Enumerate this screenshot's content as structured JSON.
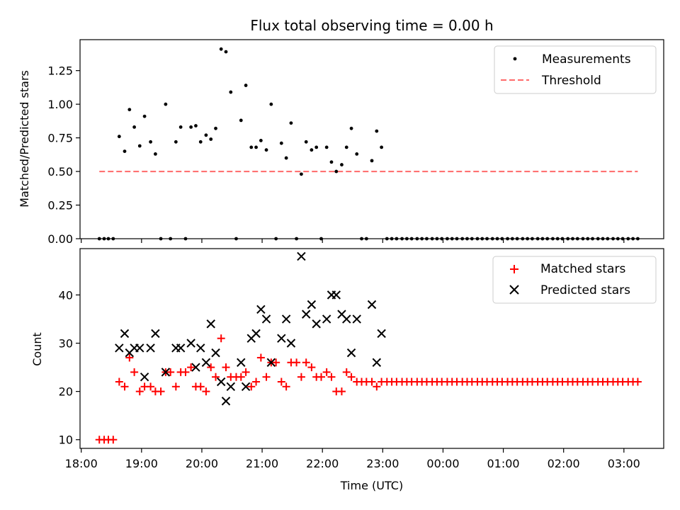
{
  "chart_data": [
    {
      "type": "scatter",
      "title": "Flux total observing time = 0.00 h",
      "ylabel": "Matched/Predicted stars",
      "xlabel": "",
      "x_unit": "hours since 18:00 UTC",
      "xlim": [
        17.98,
        27.66
      ],
      "ylim": [
        0,
        1.48
      ],
      "yticks": [
        0.0,
        0.25,
        0.5,
        0.75,
        1.0,
        1.25
      ],
      "ytick_labels": [
        "0.00",
        "0.25",
        "0.50",
        "0.75",
        "1.00",
        "1.25"
      ],
      "legend_position": "top-right",
      "series": [
        {
          "name": "Measurements",
          "marker": "dot",
          "color": "#000000",
          "points": [
            [
              18.3,
              0.0
            ],
            [
              18.38,
              0.0
            ],
            [
              18.45,
              0.0
            ],
            [
              18.53,
              0.0
            ],
            [
              18.63,
              0.76
            ],
            [
              18.72,
              0.65
            ],
            [
              18.8,
              0.96
            ],
            [
              18.88,
              0.83
            ],
            [
              18.97,
              0.69
            ],
            [
              19.05,
              0.91
            ],
            [
              19.15,
              0.72
            ],
            [
              19.23,
              0.63
            ],
            [
              19.32,
              0.0
            ],
            [
              19.4,
              1.0
            ],
            [
              19.48,
              0.0
            ],
            [
              19.57,
              0.72
            ],
            [
              19.65,
              0.83
            ],
            [
              19.73,
              0.0
            ],
            [
              19.82,
              0.83
            ],
            [
              19.9,
              0.84
            ],
            [
              19.98,
              0.72
            ],
            [
              20.07,
              0.77
            ],
            [
              20.15,
              0.74
            ],
            [
              20.23,
              0.82
            ],
            [
              20.32,
              1.41
            ],
            [
              20.4,
              1.39
            ],
            [
              20.48,
              1.09
            ],
            [
              20.57,
              0.0
            ],
            [
              20.65,
              0.88
            ],
            [
              20.73,
              1.14
            ],
            [
              20.82,
              0.68
            ],
            [
              20.9,
              0.68
            ],
            [
              20.98,
              0.73
            ],
            [
              21.07,
              0.66
            ],
            [
              21.15,
              1.0
            ],
            [
              21.23,
              0.0
            ],
            [
              21.32,
              0.71
            ],
            [
              21.4,
              0.6
            ],
            [
              21.48,
              0.86
            ],
            [
              21.57,
              0.0
            ],
            [
              21.65,
              0.48
            ],
            [
              21.73,
              0.72
            ],
            [
              21.82,
              0.66
            ],
            [
              21.9,
              0.68
            ],
            [
              21.98,
              0.0
            ],
            [
              22.07,
              0.68
            ],
            [
              22.15,
              0.57
            ],
            [
              22.23,
              0.5
            ],
            [
              22.32,
              0.55
            ],
            [
              22.4,
              0.68
            ],
            [
              22.48,
              0.82
            ],
            [
              22.57,
              0.63
            ],
            [
              22.65,
              0.0
            ],
            [
              22.73,
              0.0
            ],
            [
              22.82,
              0.58
            ],
            [
              22.9,
              0.8
            ],
            [
              22.98,
              0.68
            ],
            [
              23.07,
              0.0
            ],
            [
              23.15,
              0.0
            ],
            [
              23.23,
              0.0
            ],
            [
              23.32,
              0.0
            ],
            [
              23.4,
              0.0
            ],
            [
              23.48,
              0.0
            ],
            [
              23.57,
              0.0
            ],
            [
              23.65,
              0.0
            ],
            [
              23.73,
              0.0
            ],
            [
              23.82,
              0.0
            ],
            [
              23.9,
              0.0
            ],
            [
              23.98,
              0.0
            ],
            [
              24.07,
              0.0
            ],
            [
              24.15,
              0.0
            ],
            [
              24.23,
              0.0
            ],
            [
              24.32,
              0.0
            ],
            [
              24.4,
              0.0
            ],
            [
              24.48,
              0.0
            ],
            [
              24.57,
              0.0
            ],
            [
              24.65,
              0.0
            ],
            [
              24.73,
              0.0
            ],
            [
              24.82,
              0.0
            ],
            [
              24.9,
              0.0
            ],
            [
              24.98,
              0.0
            ],
            [
              25.07,
              0.0
            ],
            [
              25.15,
              0.0
            ],
            [
              25.23,
              0.0
            ],
            [
              25.32,
              0.0
            ],
            [
              25.4,
              0.0
            ],
            [
              25.48,
              0.0
            ],
            [
              25.57,
              0.0
            ],
            [
              25.65,
              0.0
            ],
            [
              25.73,
              0.0
            ],
            [
              25.82,
              0.0
            ],
            [
              25.9,
              0.0
            ],
            [
              25.98,
              0.0
            ],
            [
              26.07,
              0.0
            ],
            [
              26.15,
              0.0
            ],
            [
              26.23,
              0.0
            ],
            [
              26.32,
              0.0
            ],
            [
              26.4,
              0.0
            ],
            [
              26.48,
              0.0
            ],
            [
              26.57,
              0.0
            ],
            [
              26.65,
              0.0
            ],
            [
              26.73,
              0.0
            ],
            [
              26.82,
              0.0
            ],
            [
              26.9,
              0.0
            ],
            [
              26.98,
              0.0
            ],
            [
              27.07,
              0.0
            ],
            [
              27.15,
              0.0
            ],
            [
              27.23,
              0.0
            ]
          ]
        },
        {
          "name": "Threshold",
          "type": "line",
          "style": "dashed",
          "color": "#ff6a6a",
          "x": [
            18.3,
            27.23
          ],
          "y": [
            0.5,
            0.5
          ]
        }
      ]
    },
    {
      "type": "scatter",
      "title": "",
      "ylabel": "Count",
      "xlabel": "Time (UTC)",
      "x_unit": "hours since 18:00 UTC",
      "xlim": [
        17.98,
        27.66
      ],
      "ylim": [
        8.2,
        49.6
      ],
      "yticks": [
        10,
        20,
        30,
        40
      ],
      "ytick_labels": [
        "10",
        "20",
        "30",
        "40"
      ],
      "xticks": [
        18,
        19,
        20,
        21,
        22,
        23,
        24,
        25,
        26,
        27
      ],
      "xtick_labels": [
        "18:00",
        "19:00",
        "20:00",
        "21:00",
        "22:00",
        "23:00",
        "00:00",
        "01:00",
        "02:00",
        "03:00"
      ],
      "legend_position": "top-right",
      "series": [
        {
          "name": "Matched stars",
          "marker": "plus",
          "color": "#ff0000",
          "points": [
            [
              18.3,
              10
            ],
            [
              18.38,
              10
            ],
            [
              18.45,
              10
            ],
            [
              18.53,
              10
            ],
            [
              18.63,
              22
            ],
            [
              18.72,
              21
            ],
            [
              18.8,
              27
            ],
            [
              18.88,
              24
            ],
            [
              18.97,
              20
            ],
            [
              19.05,
              21
            ],
            [
              19.15,
              21
            ],
            [
              19.23,
              20
            ],
            [
              19.32,
              20
            ],
            [
              19.4,
              24
            ],
            [
              19.48,
              24
            ],
            [
              19.57,
              21
            ],
            [
              19.65,
              24
            ],
            [
              19.73,
              24
            ],
            [
              19.82,
              25
            ],
            [
              19.9,
              21
            ],
            [
              19.98,
              21
            ],
            [
              20.07,
              20
            ],
            [
              20.15,
              25
            ],
            [
              20.23,
              23
            ],
            [
              20.32,
              31
            ],
            [
              20.4,
              25
            ],
            [
              20.48,
              23
            ],
            [
              20.57,
              23
            ],
            [
              20.65,
              23
            ],
            [
              20.73,
              24
            ],
            [
              20.82,
              21
            ],
            [
              20.9,
              22
            ],
            [
              20.98,
              27
            ],
            [
              21.07,
              23
            ],
            [
              21.15,
              26
            ],
            [
              21.23,
              26
            ],
            [
              21.32,
              22
            ],
            [
              21.4,
              21
            ],
            [
              21.48,
              26
            ],
            [
              21.57,
              26
            ],
            [
              21.65,
              23
            ],
            [
              21.73,
              26
            ],
            [
              21.82,
              25
            ],
            [
              21.9,
              23
            ],
            [
              21.98,
              23
            ],
            [
              22.07,
              24
            ],
            [
              22.15,
              23
            ],
            [
              22.23,
              20
            ],
            [
              22.32,
              20
            ],
            [
              22.4,
              24
            ],
            [
              22.48,
              23
            ],
            [
              22.57,
              22
            ],
            [
              22.65,
              22
            ],
            [
              22.73,
              22
            ],
            [
              22.82,
              22
            ],
            [
              22.9,
              21
            ],
            [
              22.98,
              22
            ],
            [
              23.07,
              22
            ],
            [
              23.15,
              22
            ],
            [
              23.23,
              22
            ],
            [
              23.32,
              22
            ],
            [
              23.4,
              22
            ],
            [
              23.48,
              22
            ],
            [
              23.57,
              22
            ],
            [
              23.65,
              22
            ],
            [
              23.73,
              22
            ],
            [
              23.82,
              22
            ],
            [
              23.9,
              22
            ],
            [
              23.98,
              22
            ],
            [
              24.07,
              22
            ],
            [
              24.15,
              22
            ],
            [
              24.23,
              22
            ],
            [
              24.32,
              22
            ],
            [
              24.4,
              22
            ],
            [
              24.48,
              22
            ],
            [
              24.57,
              22
            ],
            [
              24.65,
              22
            ],
            [
              24.73,
              22
            ],
            [
              24.82,
              22
            ],
            [
              24.9,
              22
            ],
            [
              24.98,
              22
            ],
            [
              25.07,
              22
            ],
            [
              25.15,
              22
            ],
            [
              25.23,
              22
            ],
            [
              25.32,
              22
            ],
            [
              25.4,
              22
            ],
            [
              25.48,
              22
            ],
            [
              25.57,
              22
            ],
            [
              25.65,
              22
            ],
            [
              25.73,
              22
            ],
            [
              25.82,
              22
            ],
            [
              25.9,
              22
            ],
            [
              25.98,
              22
            ],
            [
              26.07,
              22
            ],
            [
              26.15,
              22
            ],
            [
              26.23,
              22
            ],
            [
              26.32,
              22
            ],
            [
              26.4,
              22
            ],
            [
              26.48,
              22
            ],
            [
              26.57,
              22
            ],
            [
              26.65,
              22
            ],
            [
              26.73,
              22
            ],
            [
              26.82,
              22
            ],
            [
              26.9,
              22
            ],
            [
              26.98,
              22
            ],
            [
              27.07,
              22
            ],
            [
              27.15,
              22
            ],
            [
              27.23,
              22
            ]
          ]
        },
        {
          "name": "Predicted stars",
          "marker": "x",
          "color": "#000000",
          "points": [
            [
              18.63,
              29
            ],
            [
              18.72,
              32
            ],
            [
              18.8,
              28
            ],
            [
              18.88,
              29
            ],
            [
              18.97,
              29
            ],
            [
              19.05,
              23
            ],
            [
              19.15,
              29
            ],
            [
              19.23,
              32
            ],
            [
              19.4,
              24
            ],
            [
              19.57,
              29
            ],
            [
              19.65,
              29
            ],
            [
              19.82,
              30
            ],
            [
              19.9,
              25
            ],
            [
              19.98,
              29
            ],
            [
              20.07,
              26
            ],
            [
              20.15,
              34
            ],
            [
              20.23,
              28
            ],
            [
              20.32,
              22
            ],
            [
              20.4,
              18
            ],
            [
              20.48,
              21
            ],
            [
              20.65,
              26
            ],
            [
              20.73,
              21
            ],
            [
              20.82,
              31
            ],
            [
              20.9,
              32
            ],
            [
              20.98,
              37
            ],
            [
              21.07,
              35
            ],
            [
              21.15,
              26
            ],
            [
              21.32,
              31
            ],
            [
              21.4,
              35
            ],
            [
              21.48,
              30
            ],
            [
              21.65,
              48
            ],
            [
              21.73,
              36
            ],
            [
              21.82,
              38
            ],
            [
              21.9,
              34
            ],
            [
              22.07,
              35
            ],
            [
              22.15,
              40
            ],
            [
              22.23,
              40
            ],
            [
              22.32,
              36
            ],
            [
              22.4,
              35
            ],
            [
              22.48,
              28
            ],
            [
              22.57,
              35
            ],
            [
              22.82,
              38
            ],
            [
              22.9,
              26
            ],
            [
              22.98,
              32
            ]
          ]
        }
      ]
    }
  ]
}
